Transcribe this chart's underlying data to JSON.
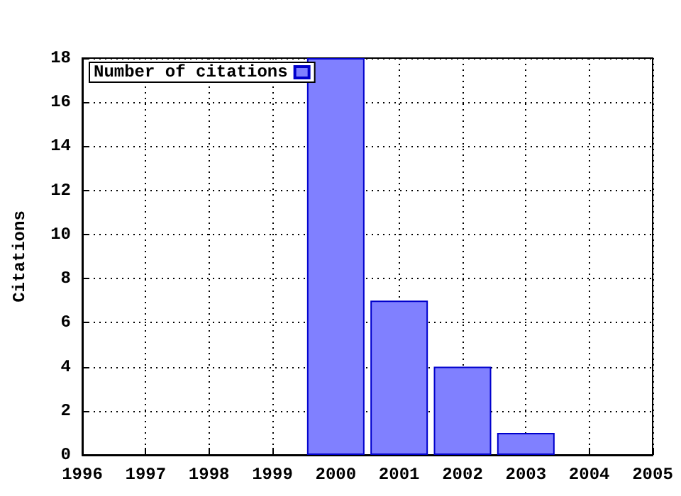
{
  "chart_data": {
    "type": "bar",
    "ylabel": "Citations",
    "x": [
      2000,
      2001,
      2002,
      2003
    ],
    "series": [
      {
        "name": "Number of citations",
        "color": "#8080ff",
        "values": [
          18,
          7,
          4,
          1
        ]
      }
    ],
    "xlim": [
      1996,
      2005
    ],
    "xticks": [
      1996,
      1997,
      1998,
      1999,
      2000,
      2001,
      2002,
      2003,
      2004,
      2005
    ],
    "ylim": [
      0,
      18
    ],
    "yticks": [
      0,
      2,
      4,
      6,
      8,
      10,
      12,
      14,
      16,
      18
    ],
    "grid": true,
    "legend": "top left"
  }
}
